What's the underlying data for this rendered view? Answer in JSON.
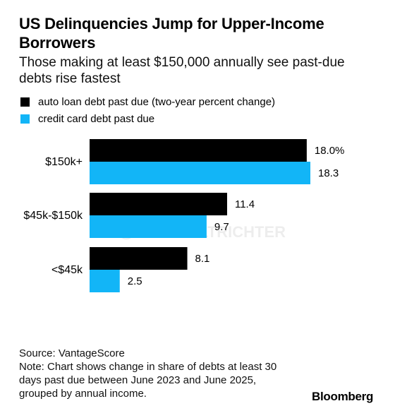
{
  "title": "US Delinquencies Jump for Upper-Income Borrowers",
  "subtitle": "Those making at least $150,000 annually see past-due debts rise fastest",
  "legend": [
    {
      "label": "auto loan debt past due (two-year percent change)",
      "color": "#000000"
    },
    {
      "label": "credit card debt past due",
      "color": "#12b5f7"
    }
  ],
  "chart_data": {
    "type": "bar",
    "orientation": "horizontal",
    "categories": [
      "$150k+",
      "$45k-$150k",
      "<$45k"
    ],
    "series": [
      {
        "name": "auto loan debt past due (two-year percent change)",
        "color": "#000000",
        "values": [
          18.0,
          11.4,
          8.1
        ],
        "labels": [
          "18.0%",
          "11.4",
          "8.1"
        ]
      },
      {
        "name": "credit card debt past due",
        "color": "#12b5f7",
        "values": [
          18.3,
          9.7,
          2.5
        ],
        "labels": [
          "18.3",
          "9.7",
          "2.5"
        ]
      }
    ],
    "xlim": [
      0,
      18.3
    ],
    "grid": false,
    "legend_position": "top-left"
  },
  "watermark": "@KURTSALTRICHTER",
  "source": "Source: VantageScore",
  "note": "Note: Chart shows change in share of debts at least 30 days past due between June 2023 and June 2025, grouped by annual income.",
  "brand": "Bloomberg"
}
